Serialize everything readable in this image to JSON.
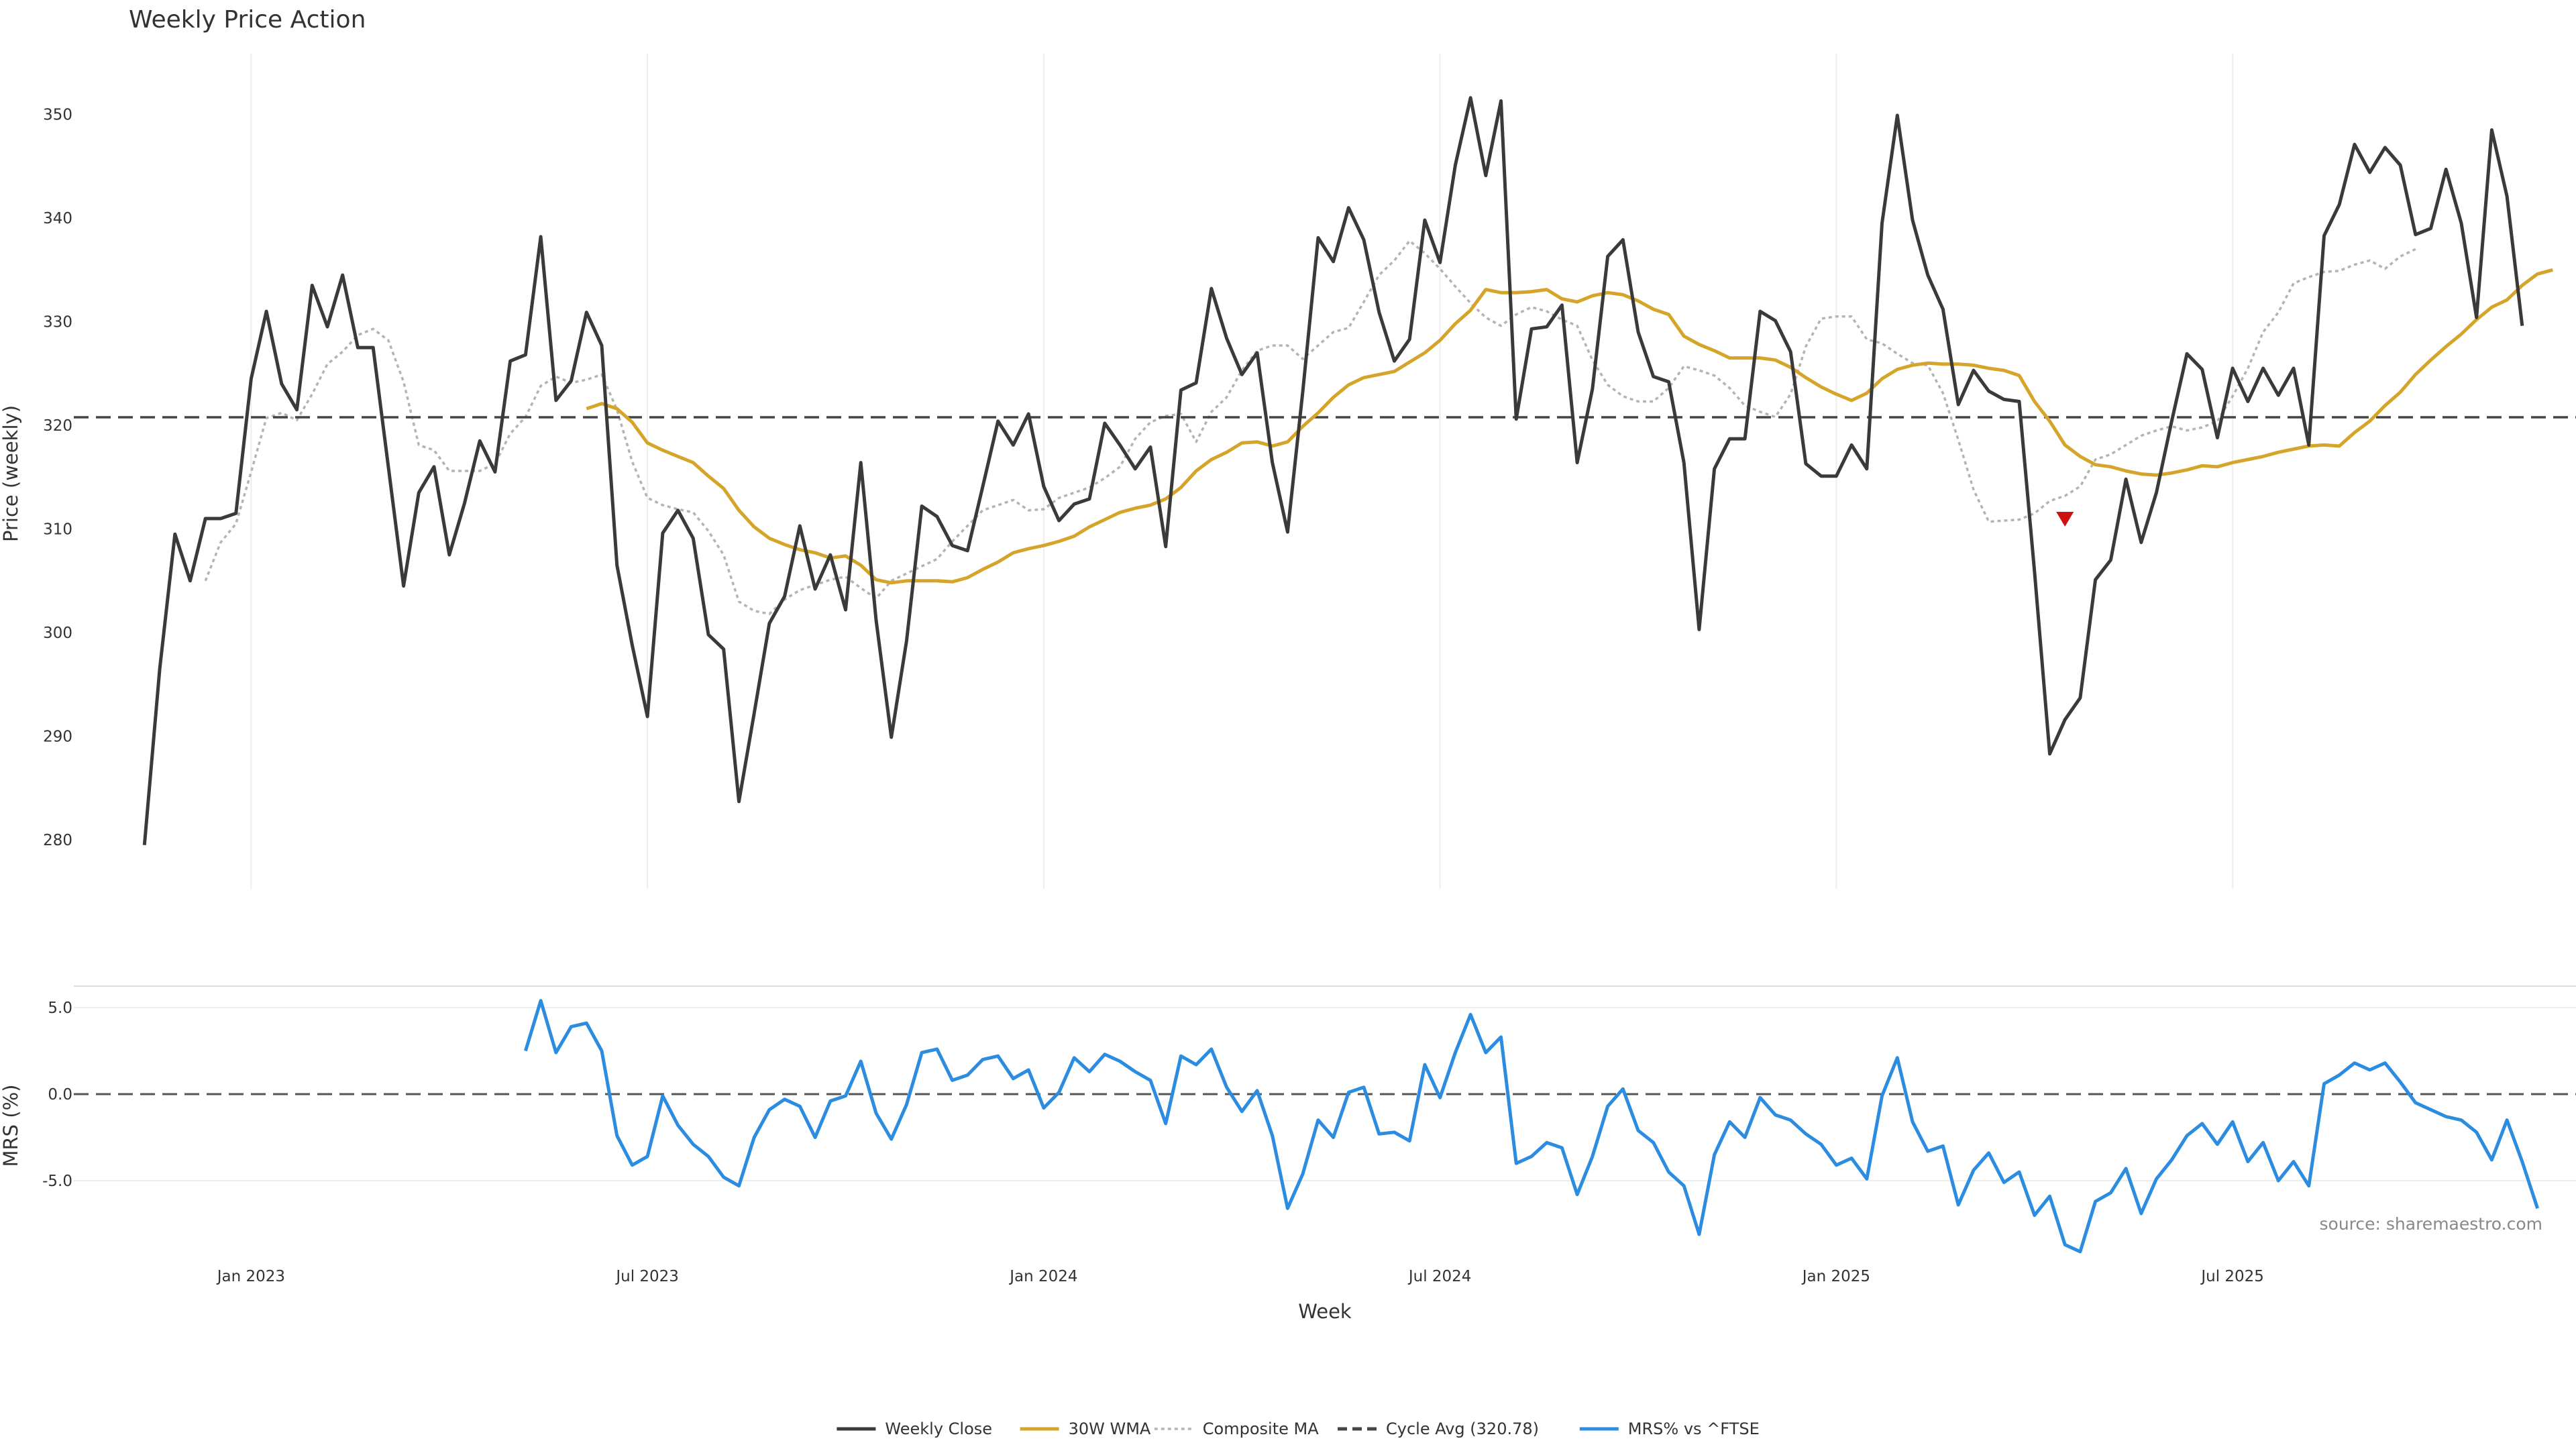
{
  "chart_data": {
    "type": "line",
    "title": "Weekly Price Action",
    "source_note": "source: sharemaestro.com",
    "xlabel": "Week",
    "x_ticks": [
      "Jan 2023",
      "Jul 2023",
      "Jan 2024",
      "Jul 2024",
      "Jan 2025",
      "Jul 2025"
    ],
    "x_tick_weeks": [
      7,
      33,
      59,
      85,
      111,
      137
    ],
    "grid": true,
    "legend_position": "bottom-center",
    "price_panel": {
      "ylabel": "Price (weekly)",
      "ylim": [
        278,
        356
      ],
      "y_ticks": [
        280,
        290,
        300,
        310,
        320,
        330,
        340,
        350
      ],
      "cycle_avg": 320.78,
      "signal_marker": {
        "week": 126,
        "value": 311,
        "color": "#cc1111",
        "shape": "triangle-down"
      }
    },
    "mrs_panel": {
      "ylabel": "MRS (%)",
      "ylim": [
        -9.5,
        7
      ],
      "y_ticks": [
        5.0,
        0.0,
        -5.0
      ],
      "y_tick_labels": [
        "5.0",
        "0.0",
        "-5.0"
      ],
      "zero_line": 0
    },
    "series": [
      {
        "name": "Weekly Close",
        "color": "#3a3a3a",
        "style": "solid",
        "panel": "price",
        "start_week": 0,
        "values": [
          279.5,
          296.5,
          309.5,
          305,
          311,
          311,
          311.5,
          324.5,
          331,
          324,
          321.5,
          333.5,
          329.5,
          334.5,
          327.5,
          327.5,
          316,
          304.5,
          313.5,
          316,
          307.5,
          312.5,
          318.5,
          315.5,
          326.2,
          326.8,
          338.2,
          322.4,
          324.3,
          330.9,
          327.7,
          306.5,
          298.8,
          291.9,
          309.6,
          311.8,
          309.1,
          299.8,
          298.4,
          283.7,
          292.2,
          300.9,
          303.5,
          310.3,
          304.2,
          307.5,
          302.2,
          316.4,
          301.2,
          289.9,
          299.2,
          312.2,
          311.2,
          308.4,
          307.9,
          314.1,
          320.4,
          318.1,
          321.1,
          314.1,
          310.8,
          312.4,
          312.9,
          320.2,
          318.1,
          315.8,
          317.9,
          308.3,
          323.4,
          324.1,
          333.2,
          328.4,
          324.9,
          327,
          316.4,
          309.7,
          323.3,
          338.1,
          335.8,
          341,
          337.9,
          330.9,
          326.2,
          328.3,
          339.8,
          335.7,
          345.1,
          351.6,
          344.1,
          351.3,
          320.6,
          329.3,
          329.5,
          331.6,
          316.4,
          323.5,
          336.3,
          337.9,
          329,
          324.7,
          324.2,
          316.4,
          300.3,
          315.8,
          318.7,
          318.7,
          331,
          330.1,
          327.1,
          316.3,
          315.1,
          315.1,
          318.1,
          315.8,
          339.5,
          349.9,
          339.8,
          334.5,
          331.2,
          322,
          325.3,
          323.3,
          322.5,
          322.3,
          305.9,
          288.3,
          291.6,
          293.7,
          305.1,
          307,
          314.8,
          308.7,
          313.5,
          320.4,
          326.9,
          325.4,
          318.8,
          325.5,
          322.3,
          325.5,
          322.9,
          325.5,
          318.1,
          338.3,
          341.3,
          347.1,
          344.4,
          346.8,
          345.1,
          338.4,
          339,
          344.7,
          339.5,
          330.4,
          348.5,
          342.1,
          329.6
        ]
      },
      {
        "name": "30W WMA",
        "color": "#d4a52a",
        "style": "solid",
        "panel": "price",
        "start_week": 29,
        "values": [
          321.6,
          322.1,
          321.6,
          320.3,
          318.3,
          317.6,
          317,
          316.4,
          315.1,
          313.9,
          311.8,
          310.2,
          309.1,
          308.5,
          308,
          307.7,
          307.2,
          307.4,
          306.5,
          305.1,
          304.8,
          305,
          305,
          305,
          304.9,
          305.3,
          306.1,
          306.8,
          307.7,
          308.1,
          308.4,
          308.8,
          309.3,
          310.2,
          310.9,
          311.6,
          312,
          312.3,
          312.9,
          314,
          315.6,
          316.7,
          317.4,
          318.3,
          318.4,
          318,
          318.4,
          319.9,
          321.2,
          322.7,
          323.9,
          324.6,
          324.9,
          325.2,
          326.1,
          327,
          328.2,
          329.8,
          331.1,
          333.1,
          332.8,
          332.8,
          332.9,
          333.1,
          332.2,
          331.9,
          332.5,
          332.8,
          332.6,
          332,
          331.2,
          330.7,
          328.6,
          327.8,
          327.2,
          326.5,
          326.5,
          326.5,
          326.3,
          325.6,
          324.6,
          323.7,
          323,
          322.4,
          323.1,
          324.5,
          325.4,
          325.8,
          326,
          325.9,
          325.9,
          325.8,
          325.5,
          325.3,
          324.8,
          322.3,
          320.4,
          318.1,
          317,
          316.2,
          316,
          315.6,
          315.3,
          315.2,
          315.4,
          315.7,
          316.1,
          316,
          316.4,
          316.7,
          317,
          317.4,
          317.7,
          318,
          318.1,
          318,
          319.3,
          320.4,
          321.9,
          323.2,
          324.9,
          326.3,
          327.6,
          328.8,
          330.2,
          331.4,
          332.1,
          333.5,
          334.6,
          335
        ]
      },
      {
        "name": "Composite MA",
        "color": "#b4b4b4",
        "style": "dotted",
        "panel": "price",
        "start_week": 4,
        "values": [
          305,
          308.7,
          310.5,
          315.5,
          320.7,
          321.2,
          320.5,
          323,
          325.9,
          327.1,
          328.7,
          329.3,
          328.2,
          324.2,
          318.1,
          317.6,
          315.6,
          315.6,
          315.6,
          316.3,
          319.2,
          320.8,
          323.8,
          324.7,
          324.1,
          324.4,
          324.9,
          321.5,
          316.5,
          313,
          312.3,
          311.9,
          311.6,
          309.8,
          307.5,
          303,
          302.1,
          301.8,
          303.2,
          304.1,
          304.6,
          305.1,
          305.4,
          304.3,
          303.3,
          305,
          305.7,
          306.4,
          307.1,
          308.8,
          310.3,
          311.8,
          312.3,
          312.8,
          311.8,
          311.9,
          313,
          313.5,
          314,
          314.9,
          316,
          318.7,
          320.3,
          320.9,
          321.1,
          318.4,
          321.3,
          322.7,
          325.3,
          327.2,
          327.7,
          327.7,
          326.4,
          327.7,
          329,
          329.4,
          331.9,
          334.5,
          335.9,
          337.8,
          336.6,
          335.1,
          333.4,
          331.8,
          330.4,
          329.6,
          330.7,
          331.4,
          331,
          330.2,
          329.6,
          326.3,
          323.9,
          322.8,
          322.3,
          322.3,
          323.6,
          325.7,
          325.3,
          324.8,
          323.6,
          321.9,
          321.3,
          320.8,
          323,
          327.6,
          330.3,
          330.5,
          330.5,
          328.3,
          327.9,
          326.9,
          326,
          325.8,
          323.1,
          318.6,
          313.8,
          310.7,
          310.8,
          310.9,
          311.5,
          312.7,
          313.2,
          314.1,
          316.7,
          317.2,
          318.1,
          319,
          319.5,
          319.9,
          319.5,
          319.8,
          320.4,
          322.8,
          325.5,
          329,
          330.9,
          333.7,
          334.3,
          334.8,
          334.9,
          335.5,
          335.9,
          335.1,
          336.3,
          337
        ]
      },
      {
        "name": "Cycle Avg (320.78)",
        "color": "#444444",
        "style": "dashed",
        "panel": "price",
        "constant": 320.78
      },
      {
        "name": "MRS% vs ^FTSE",
        "color": "#2b8ce0",
        "style": "solid",
        "panel": "mrs",
        "start_week": 25,
        "values": [
          2.5,
          5.4,
          2.4,
          3.9,
          4.1,
          2.5,
          -2.4,
          -4.1,
          -3.6,
          -0.1,
          -1.8,
          -2.9,
          -3.6,
          -4.8,
          -5.3,
          -2.5,
          -0.9,
          -0.3,
          -0.7,
          -2.5,
          -0.4,
          -0.1,
          1.9,
          -1.1,
          -2.6,
          -0.6,
          2.4,
          2.6,
          0.8,
          1.1,
          2,
          2.2,
          0.9,
          1.4,
          -0.8,
          0.1,
          2.1,
          1.3,
          2.3,
          1.9,
          1.3,
          0.8,
          -1.7,
          2.2,
          1.7,
          2.6,
          0.4,
          -1,
          0.2,
          -2.4,
          -6.6,
          -4.6,
          -1.5,
          -2.5,
          0.1,
          0.4,
          -2.3,
          -2.2,
          -2.7,
          1.7,
          -0.2,
          2.4,
          4.6,
          2.4,
          3.3,
          -4,
          -3.6,
          -2.8,
          -3.1,
          -5.8,
          -3.6,
          -0.7,
          0.3,
          -2.1,
          -2.8,
          -4.5,
          -5.3,
          -8.1,
          -3.5,
          -1.6,
          -2.5,
          -0.2,
          -1.2,
          -1.5,
          -2.3,
          -2.9,
          -4.1,
          -3.7,
          -4.9,
          -0.1,
          2.1,
          -1.6,
          -3.3,
          -3,
          -6.4,
          -4.4,
          -3.4,
          -5.1,
          -4.5,
          -7,
          -5.9,
          -8.7,
          -9.1,
          -6.2,
          -5.7,
          -4.3,
          -6.9,
          -4.9,
          -3.8,
          -2.4,
          -1.7,
          -2.9,
          -1.6,
          -3.9,
          -2.8,
          -5,
          -3.9,
          -5.3,
          0.6,
          1.1,
          1.8,
          1.4,
          1.8,
          0.7,
          -0.5,
          -0.9,
          -1.3,
          -1.5,
          -2.2,
          -3.8,
          -1.5,
          -3.9,
          -6.6
        ]
      }
    ]
  }
}
